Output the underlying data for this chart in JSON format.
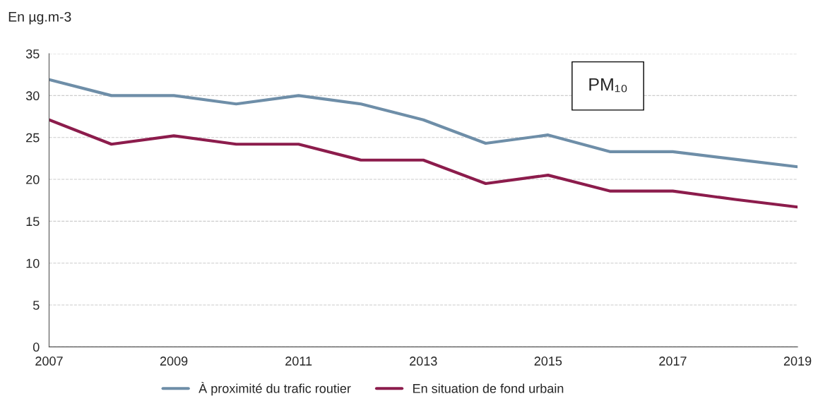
{
  "chart_data": {
    "type": "line",
    "ylabel": "En µg.m-3",
    "x": [
      2007,
      2008,
      2009,
      2010,
      2011,
      2012,
      2013,
      2014,
      2015,
      2016,
      2017,
      2018,
      2019
    ],
    "series": [
      {
        "name": "À proximité du trafic routier",
        "color": "#6e8ea8",
        "values": [
          31.9,
          30,
          30,
          29,
          30,
          29,
          27.1,
          24.3,
          25.3,
          23.3,
          23.3,
          22.4,
          21.5
        ]
      },
      {
        "name": "En situation de fond urbain",
        "color": "#8c1c4c",
        "values": [
          27.1,
          24.2,
          25.2,
          24.2,
          24.2,
          22.3,
          22.3,
          19.5,
          20.5,
          18.6,
          18.6,
          17.6,
          16.7
        ]
      }
    ],
    "xlim": [
      2007,
      2019
    ],
    "xticks": [
      2007,
      2009,
      2011,
      2013,
      2015,
      2017,
      2019
    ],
    "ylim": [
      0,
      35
    ],
    "yticks": [
      0,
      5,
      10,
      15,
      20,
      25,
      30,
      35
    ],
    "grid": "y",
    "legend": "bottom",
    "line_style": "solid",
    "marker": "none",
    "annotations": [
      "PM₁₀"
    ]
  }
}
